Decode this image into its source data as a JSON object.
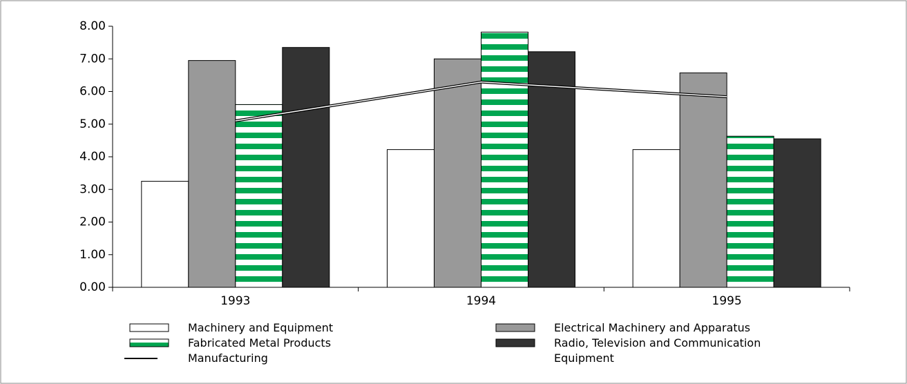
{
  "chart_data": {
    "type": "bar",
    "categories": [
      "1993",
      "1994",
      "1995"
    ],
    "ylim": [
      0,
      8
    ],
    "yticks": [
      {
        "value": 0,
        "label": "0.00"
      },
      {
        "value": 1,
        "label": "1.00"
      },
      {
        "value": 2,
        "label": "2.00"
      },
      {
        "value": 3,
        "label": "3.00"
      },
      {
        "value": 4,
        "label": "4.00"
      },
      {
        "value": 5,
        "label": "5.00"
      },
      {
        "value": 6,
        "label": "6.00"
      },
      {
        "value": 7,
        "label": "7.00"
      },
      {
        "value": 8,
        "label": "8.00"
      }
    ],
    "series": [
      {
        "name": "Machinery and Equipment",
        "color": "#ffffff",
        "values": [
          3.25,
          4.22,
          4.22
        ]
      },
      {
        "name": "Electrical Machinery and Apparatus",
        "color": "#999999",
        "values": [
          6.95,
          7.0,
          6.57
        ]
      },
      {
        "name": "Fabricated Metal Products",
        "color": "#00a651",
        "hatch": "horizontal",
        "values": [
          5.6,
          7.82,
          4.63
        ]
      },
      {
        "name": "Radio, Television and Communication Equipment",
        "color": "#333333",
        "values": [
          7.35,
          7.22,
          4.55
        ]
      },
      {
        "name": "Manufacturing",
        "type": "line",
        "color": "#000000",
        "values": [
          5.1,
          6.29,
          5.84
        ]
      }
    ]
  }
}
